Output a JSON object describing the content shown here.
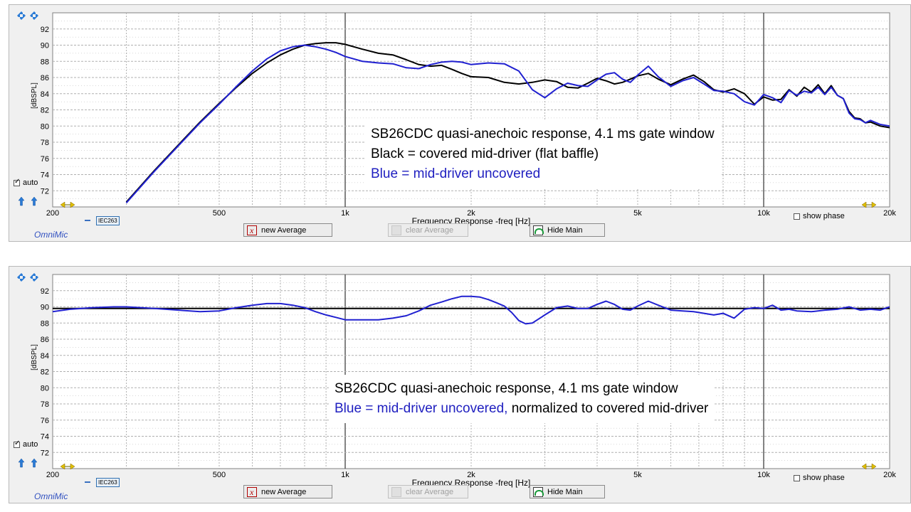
{
  "chart_data": [
    {
      "type": "line",
      "title": "",
      "xlabel": "Frequency Response -freq [Hz]",
      "ylabel": "[dBSPL]",
      "x_scale": "log",
      "xlim": [
        200,
        20000
      ],
      "ylim": [
        70,
        94
      ],
      "grid": true,
      "x_ticks": [
        200,
        500,
        1000,
        2000,
        5000,
        10000,
        20000
      ],
      "x_tick_labels": [
        "200",
        "500",
        "1k",
        "2k",
        "5k",
        "10k",
        "20k"
      ],
      "y_ticks": [
        72,
        74,
        76,
        78,
        80,
        82,
        84,
        86,
        88,
        90,
        92
      ],
      "y_tick_labels": [
        "72",
        "74",
        "76",
        "78",
        "80",
        "82",
        "84",
        "86",
        "88",
        "90",
        "92"
      ],
      "annotation": {
        "lines": [
          {
            "text": "SB26CDC quasi-anechoic response, 4.1 ms gate window",
            "color": "#000000"
          },
          {
            "text": "Black = covered mid-driver (flat baffle)",
            "color": "#000000"
          },
          {
            "text": "Blue = mid-driver uncovered",
            "color": "#2020c0"
          }
        ]
      },
      "series": [
        {
          "color": "#000000",
          "x": [
            300,
            350,
            400,
            450,
            500,
            550,
            600,
            650,
            700,
            750,
            800,
            850,
            900,
            950,
            1000,
            1100,
            1200,
            1300,
            1400,
            1500,
            1600,
            1700,
            1800,
            1900,
            2000,
            2200,
            2400,
            2600,
            2800,
            3000,
            3200,
            3400,
            3600,
            3800,
            4000,
            4200,
            4400,
            4600,
            4800,
            5000,
            5300,
            5600,
            6000,
            6400,
            6800,
            7200,
            7600,
            8000,
            8500,
            9000,
            9500,
            10000,
            10500,
            11000,
            11500,
            12000,
            12500,
            13000,
            13500,
            14000,
            14500,
            15000,
            15500,
            16000,
            16500,
            17000,
            17500,
            18000,
            19000,
            20000
          ],
          "y": [
            70.6,
            74.5,
            77.7,
            80.5,
            82.8,
            84.8,
            86.5,
            87.8,
            88.8,
            89.5,
            90.0,
            90.2,
            90.3,
            90.3,
            90.1,
            89.5,
            89.0,
            88.8,
            88.2,
            87.6,
            87.4,
            87.5,
            87.0,
            86.5,
            86.1,
            86.0,
            85.4,
            85.2,
            85.4,
            85.7,
            85.5,
            84.8,
            84.7,
            85.3,
            85.9,
            85.6,
            85.2,
            85.4,
            85.8,
            86.2,
            86.5,
            85.8,
            85.1,
            85.8,
            86.3,
            85.5,
            84.5,
            84.2,
            84.6,
            84.0,
            82.7,
            83.6,
            83.2,
            83.3,
            84.5,
            83.7,
            84.8,
            84.2,
            85.1,
            84.0,
            85.0,
            83.8,
            83.4,
            81.8,
            81.0,
            80.9,
            80.4,
            80.5,
            80.0,
            79.8
          ]
        },
        {
          "color": "#2020d0",
          "x": [
            300,
            350,
            400,
            450,
            500,
            550,
            600,
            650,
            700,
            750,
            800,
            850,
            900,
            950,
            1000,
            1100,
            1200,
            1300,
            1400,
            1500,
            1600,
            1700,
            1800,
            1900,
            2000,
            2200,
            2400,
            2600,
            2800,
            3000,
            3200,
            3400,
            3600,
            3800,
            4000,
            4200,
            4400,
            4600,
            4800,
            5000,
            5300,
            5600,
            6000,
            6400,
            6800,
            7200,
            7600,
            8000,
            8500,
            9000,
            9500,
            10000,
            10500,
            11000,
            11500,
            12000,
            12500,
            13000,
            13500,
            14000,
            14500,
            15000,
            15500,
            16000,
            16500,
            17000,
            17500,
            18000,
            19000,
            20000
          ],
          "y": [
            70.5,
            74.4,
            77.6,
            80.4,
            82.7,
            84.9,
            86.8,
            88.3,
            89.3,
            89.8,
            90.0,
            89.8,
            89.5,
            89.1,
            88.6,
            88.0,
            87.8,
            87.7,
            87.2,
            87.1,
            87.6,
            87.9,
            88.0,
            87.9,
            87.6,
            87.8,
            87.7,
            86.8,
            84.5,
            83.5,
            84.6,
            85.3,
            85.0,
            84.9,
            85.7,
            86.4,
            86.6,
            85.8,
            85.4,
            86.3,
            87.4,
            86.1,
            84.9,
            85.6,
            86.0,
            85.2,
            84.4,
            84.3,
            84.0,
            83.0,
            82.6,
            83.9,
            83.5,
            82.9,
            84.4,
            83.8,
            84.3,
            84.1,
            84.8,
            83.9,
            84.8,
            83.8,
            83.4,
            81.6,
            80.9,
            80.8,
            80.4,
            80.7,
            80.2,
            80.0
          ]
        }
      ]
    },
    {
      "type": "line",
      "title": "",
      "xlabel": "Frequency Response -freq [Hz]",
      "ylabel": "[dBSPL]",
      "x_scale": "log",
      "xlim": [
        200,
        20000
      ],
      "ylim": [
        70,
        94
      ],
      "grid": true,
      "x_ticks": [
        200,
        500,
        1000,
        2000,
        5000,
        10000,
        20000
      ],
      "x_tick_labels": [
        "200",
        "500",
        "1k",
        "2k",
        "5k",
        "10k",
        "20k"
      ],
      "y_ticks": [
        72,
        74,
        76,
        78,
        80,
        82,
        84,
        86,
        88,
        90,
        92
      ],
      "y_tick_labels": [
        "72",
        "74",
        "76",
        "78",
        "80",
        "82",
        "84",
        "86",
        "88",
        "90",
        "92"
      ],
      "annotation": {
        "lines": [
          {
            "text": "SB26CDC quasi-anechoic response, 4.1 ms gate window",
            "color": "#000000"
          },
          {
            "parts": [
              {
                "text": "Blue = mid-driver uncovered,",
                "color": "#2020c0"
              },
              {
                "text": " normalized to covered mid-driver",
                "color": "#000000"
              }
            ]
          }
        ]
      },
      "series": [
        {
          "color": "#000000",
          "x": [
            200,
            20000
          ],
          "y": [
            89.8,
            89.8
          ]
        },
        {
          "color": "#2020d0",
          "x": [
            200,
            220,
            250,
            280,
            300,
            350,
            400,
            450,
            500,
            550,
            600,
            650,
            700,
            750,
            800,
            850,
            900,
            950,
            1000,
            1100,
            1200,
            1300,
            1400,
            1500,
            1600,
            1700,
            1800,
            1900,
            2000,
            2100,
            2200,
            2300,
            2400,
            2500,
            2600,
            2700,
            2800,
            3000,
            3200,
            3400,
            3600,
            3800,
            4000,
            4200,
            4400,
            4600,
            4800,
            5000,
            5300,
            5600,
            6000,
            6400,
            6800,
            7200,
            7600,
            8000,
            8500,
            9000,
            9500,
            10000,
            10500,
            11000,
            11500,
            12000,
            13000,
            14000,
            15000,
            16000,
            17000,
            18000,
            19000,
            20000
          ],
          "y": [
            89.4,
            89.7,
            89.9,
            90.0,
            90.0,
            89.8,
            89.6,
            89.4,
            89.5,
            89.9,
            90.2,
            90.4,
            90.4,
            90.2,
            89.9,
            89.4,
            89.0,
            88.7,
            88.4,
            88.4,
            88.4,
            88.6,
            88.9,
            89.5,
            90.2,
            90.6,
            91.0,
            91.3,
            91.3,
            91.2,
            90.9,
            90.5,
            90.1,
            89.3,
            88.3,
            87.9,
            88.0,
            89.0,
            89.9,
            90.1,
            89.8,
            89.8,
            90.3,
            90.7,
            90.3,
            89.7,
            89.6,
            90.1,
            90.7,
            90.2,
            89.6,
            89.5,
            89.4,
            89.2,
            89.0,
            89.2,
            88.6,
            89.7,
            89.9,
            89.8,
            90.2,
            89.6,
            89.7,
            89.5,
            89.4,
            89.6,
            89.7,
            90.0,
            89.6,
            89.7,
            89.6,
            90.0
          ]
        }
      ]
    }
  ],
  "panels": [
    {
      "checkbox_auto": "auto",
      "show_phase": "show phase",
      "legend_tag": "IEC263",
      "logo": "OmniMic",
      "btn_new_average": "new Average",
      "btn_clear_average": "clear Average",
      "btn_hide_main": "Hide Main"
    },
    {
      "checkbox_auto": "auto",
      "show_phase": "show phase",
      "legend_tag": "IEC263",
      "logo": "OmniMic",
      "btn_new_average": "new Average",
      "btn_clear_average": "clear Average",
      "btn_hide_main": "Hide Main"
    }
  ],
  "colors": {
    "plot_bg": "#ffffff",
    "grid": "#b0b0b0",
    "panel_bg": "#f0f0f0",
    "black_trace": "#000000",
    "blue_trace": "#2020d0",
    "annotation_blue": "#2020c0"
  }
}
